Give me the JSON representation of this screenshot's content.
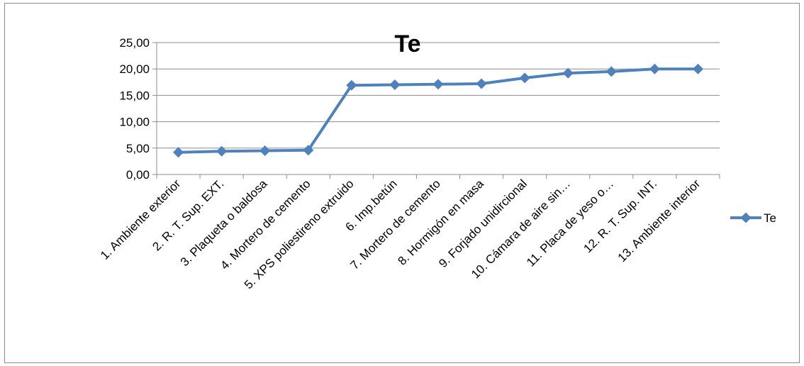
{
  "chart_data": {
    "type": "line",
    "title": "Te",
    "xlabel": "",
    "ylabel": "",
    "ylim": [
      0,
      25
    ],
    "yticks": [
      "0,00",
      "5,00",
      "10,00",
      "15,00",
      "20,00",
      "25,00"
    ],
    "grid": true,
    "legend_position": "right",
    "categories": [
      "1. Ambiente exterior",
      "2. R. T. Sup. EXT.",
      "3. Plaqueta o baldosa",
      "4. Mortero de cemento",
      "5. XPS poliestireno extruido",
      "6. Imp.betún",
      "7. Mortero de cemento",
      "8. Hormigón en masa",
      "9. Forjado unidircional",
      "10. Cámara de aire sin…",
      "11. Placa de yeso o…",
      "12. R. T. Sup. INT.",
      "13. Ambiente interior"
    ],
    "series": [
      {
        "name": "Te",
        "color": "#4f81bd",
        "marker": "diamond",
        "values": [
          4.2,
          4.4,
          4.5,
          4.6,
          16.9,
          17.0,
          17.1,
          17.2,
          18.3,
          19.2,
          19.5,
          20.0,
          20.0
        ]
      }
    ]
  }
}
